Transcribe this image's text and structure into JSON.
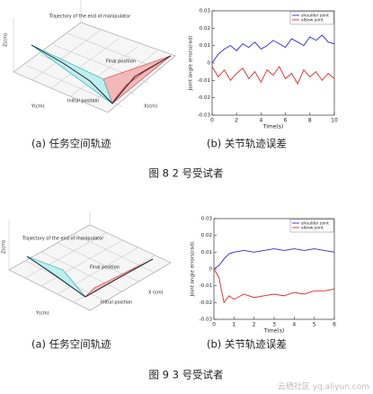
{
  "chart_data": [
    {
      "type": "line",
      "xlabel": "Time(s)",
      "ylabel": "Joint angle errors(rad)",
      "x": [
        0,
        0.5,
        1,
        1.5,
        2,
        2.5,
        3,
        3.5,
        4,
        4.5,
        5,
        5.5,
        6,
        6.5,
        7,
        7.5,
        8,
        8.5,
        9,
        9.5,
        10
      ],
      "series": [
        {
          "name": "shoulder joint",
          "color": "#2a2ae0",
          "values": [
            0.0,
            0.005,
            0.008,
            0.01,
            0.007,
            0.011,
            0.009,
            0.012,
            0.008,
            0.01,
            0.013,
            0.011,
            0.009,
            0.014,
            0.012,
            0.01,
            0.015,
            0.013,
            0.016,
            0.012,
            0.011
          ]
        },
        {
          "name": "elbow joint",
          "color": "#e02a2a",
          "values": [
            -0.002,
            -0.008,
            -0.004,
            -0.01,
            -0.006,
            -0.003,
            -0.009,
            -0.005,
            -0.011,
            -0.004,
            -0.007,
            -0.002,
            -0.009,
            -0.006,
            -0.012,
            -0.004,
            -0.008,
            -0.005,
            -0.01,
            -0.006,
            -0.009
          ]
        }
      ],
      "xlim": [
        0,
        10
      ],
      "xticks": [
        0,
        2,
        4,
        6,
        8,
        10
      ],
      "ylim": [
        -0.03,
        0.03
      ],
      "yticks": [
        -0.03,
        -0.02,
        -0.01,
        0,
        0.01,
        0.02,
        0.03
      ],
      "legend": "upper right"
    },
    {
      "type": "line",
      "xlabel": "Time(s)",
      "ylabel": "Joint angle errors(rad)",
      "x": [
        0,
        0.25,
        0.5,
        0.75,
        1,
        1.5,
        2,
        2.5,
        3,
        3.5,
        4,
        4.5,
        5,
        5.5,
        6
      ],
      "series": [
        {
          "name": "shoulder joint",
          "color": "#2a2ae0",
          "values": [
            0,
            0.002,
            0.006,
            0.009,
            0.01,
            0.011,
            0.01,
            0.011,
            0.012,
            0.011,
            0.012,
            0.011,
            0.012,
            0.011,
            0.01
          ]
        },
        {
          "name": "elbow joint",
          "color": "#e02a2a",
          "values": [
            0,
            -0.005,
            -0.02,
            -0.016,
            -0.018,
            -0.015,
            -0.017,
            -0.016,
            -0.015,
            -0.016,
            -0.014,
            -0.015,
            -0.013,
            -0.013,
            -0.012
          ]
        }
      ],
      "xlim": [
        0,
        6
      ],
      "xticks": [
        0,
        1,
        2,
        3,
        4,
        5,
        6
      ],
      "ylim": [
        -0.03,
        0.03
      ],
      "yticks": [
        -0.03,
        -0.02,
        -0.01,
        0,
        0.01,
        0.02,
        0.03
      ],
      "legend": "upper right"
    }
  ],
  "figures": [
    {
      "plot_a": {
        "trajectory": "Trajectory of the end of manipulator",
        "final": "Final position",
        "initial": "Initial position",
        "x_axis": "X(cm)",
        "y_axis": "Y(cm)",
        "z_axis": "Z(cm)"
      },
      "caption_a": "(a)  任务空间轨迹",
      "caption_b": "(b)  关节轨迹误差",
      "caption": "图 8  2 号受试者"
    },
    {
      "plot_a": {
        "trajectory": "Trajectory of the end of manipulator",
        "final": "Final position",
        "initial": "Initial position",
        "x_axis": "X (cm)",
        "y_axis": "Y(cm)",
        "z_axis": "Z(cm)"
      },
      "caption_a": "(a)  任务空间轨迹",
      "caption_b": "(b)  关节轨迹误差",
      "caption": "图 9  3 号受试者"
    }
  ],
  "watermark": "云栖社区 yq.aliyun.com"
}
